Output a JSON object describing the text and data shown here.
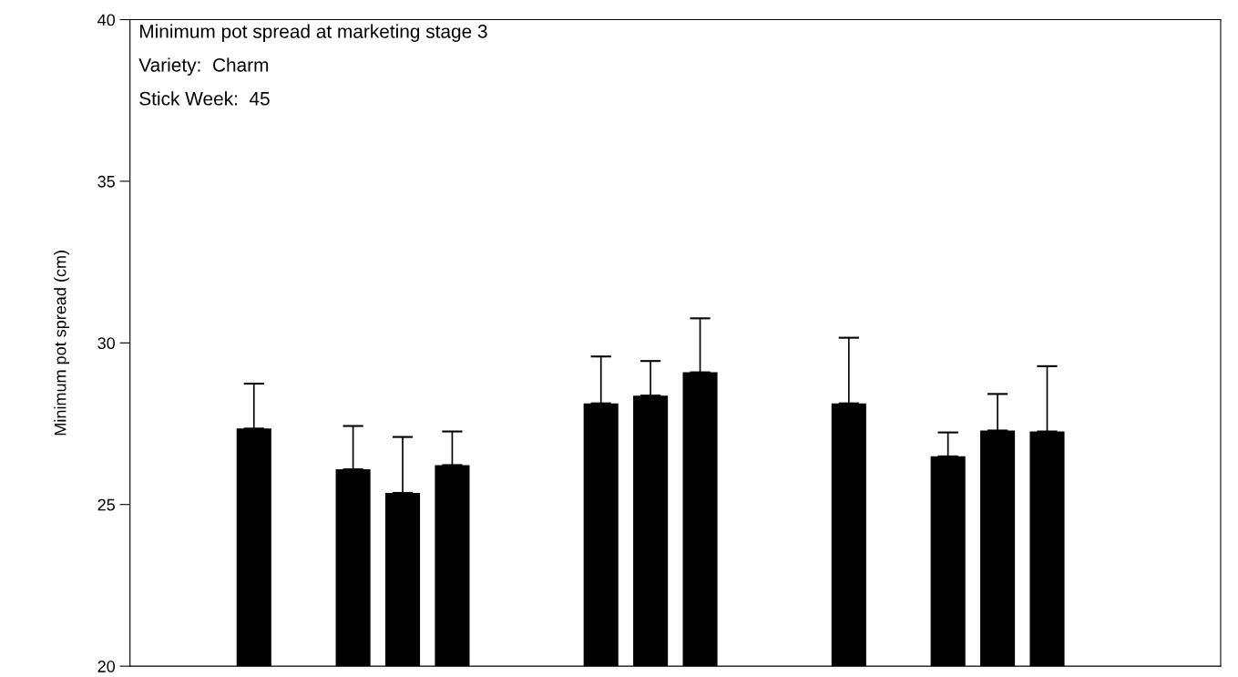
{
  "chart_data": {
    "type": "bar",
    "title": "Minimum pot spread at marketing stage 3",
    "annotations": [
      "Variety:  Charm",
      "Stick Week:  45"
    ],
    "ylabel": "Minimum pot spread (cm)",
    "categories": [
      null,
      null,
      null,
      null,
      null,
      null,
      null,
      null,
      null,
      null,
      null,
      null,
      null,
      null,
      null,
      null,
      null,
      null,
      null,
      null,
      null,
      null
    ],
    "values": [
      null,
      null,
      27.35,
      null,
      26.09,
      25.36,
      26.22,
      null,
      null,
      28.13,
      28.37,
      29.09,
      null,
      null,
      28.13,
      null,
      26.49,
      27.29,
      27.26,
      null,
      null,
      null
    ],
    "errors": [
      null,
      null,
      [
        27.35,
        28.74
      ],
      null,
      [
        26.09,
        27.43
      ],
      [
        25.36,
        27.09
      ],
      [
        26.22,
        27.26
      ],
      null,
      null,
      [
        28.13,
        29.58
      ],
      [
        28.37,
        29.44
      ],
      [
        29.09,
        30.76
      ],
      null,
      null,
      [
        28.13,
        30.16
      ],
      null,
      [
        26.49,
        27.23
      ],
      [
        27.29,
        28.42
      ],
      [
        27.26,
        29.28
      ],
      null,
      null,
      null
    ],
    "color": "#000000",
    "ylim": [
      20,
      40
    ],
    "yticks": [
      20,
      25,
      30,
      35,
      40
    ],
    "grid": false
  }
}
